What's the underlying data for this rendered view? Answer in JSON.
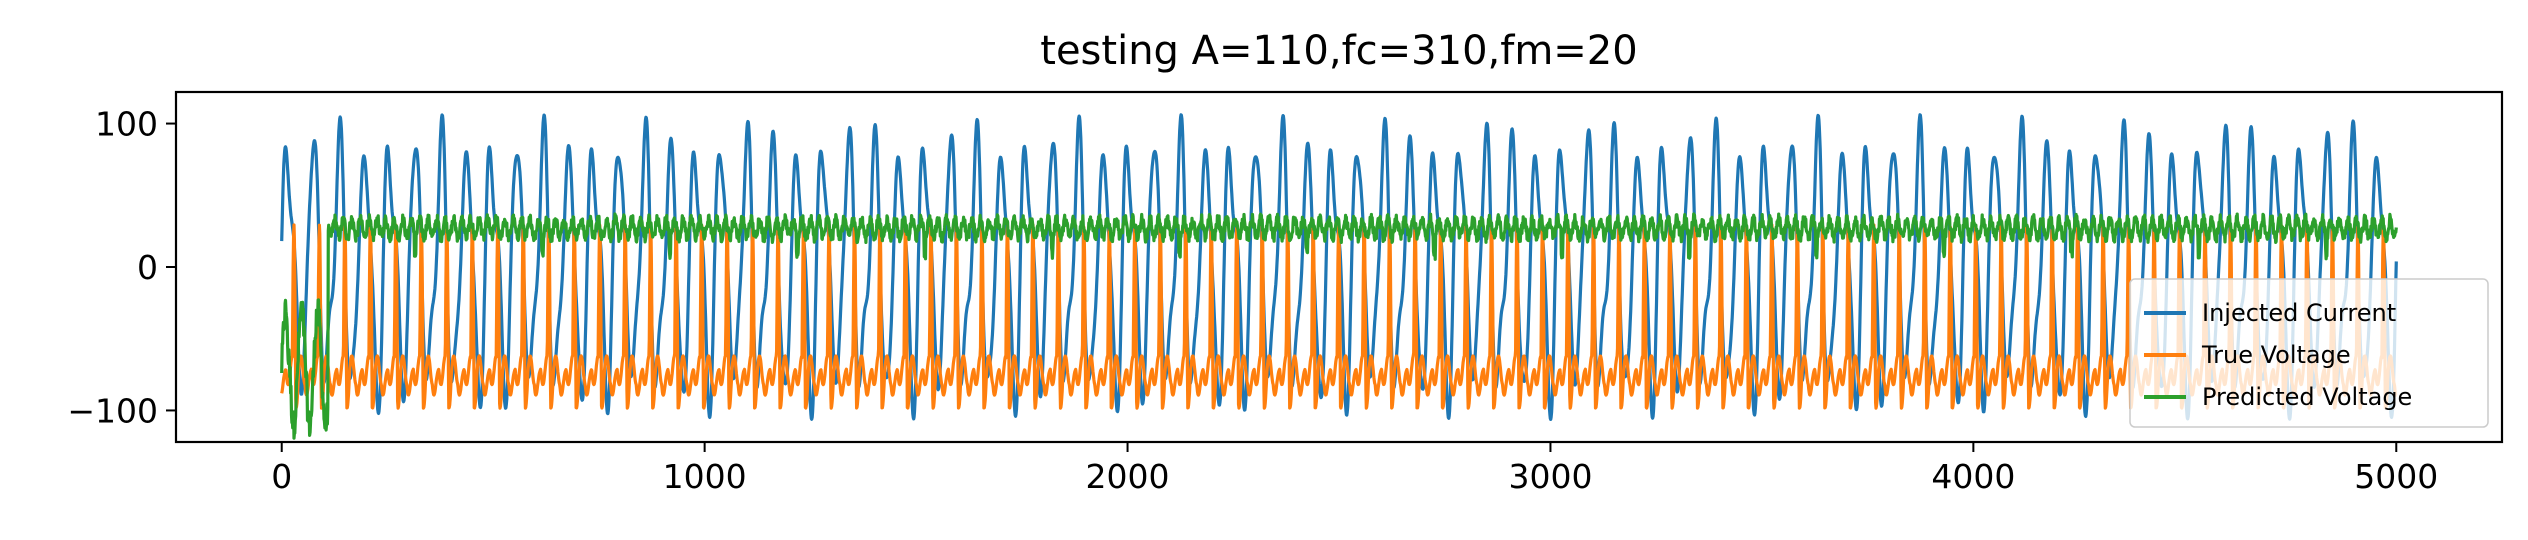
{
  "chart_data": {
    "type": "line",
    "title": "testing A=110,fc=310,fm=20",
    "xlabel": "",
    "ylabel": "",
    "xlim": [
      -250,
      5250
    ],
    "ylim": [
      -122,
      122
    ],
    "x_ticks": [
      0,
      1000,
      2000,
      3000,
      4000,
      5000
    ],
    "x_tick_labels": [
      "0",
      "1000",
      "2000",
      "3000",
      "4000",
      "5000"
    ],
    "y_ticks": [
      -100,
      0,
      100
    ],
    "y_tick_labels": [
      "−100",
      "0",
      "100"
    ],
    "grid": false,
    "legend_position": "lower-right",
    "x_range": [
      0,
      5000
    ],
    "n_points": 5000,
    "series": [
      {
        "name": "Injected Current",
        "color": "#1f77b4",
        "description_values": {
          "amplitude": 110,
          "fc": 310,
          "fm": 20,
          "min": -110,
          "max": 110
        }
      },
      {
        "name": "True Voltage",
        "color": "#ff7f0e",
        "description_values": {
          "min": -105,
          "max": 40,
          "baseline": -70
        }
      },
      {
        "name": "Predicted Voltage",
        "color": "#2ca02c",
        "description_values": {
          "min": -95,
          "max": 45,
          "baseline": 27
        }
      }
    ]
  }
}
